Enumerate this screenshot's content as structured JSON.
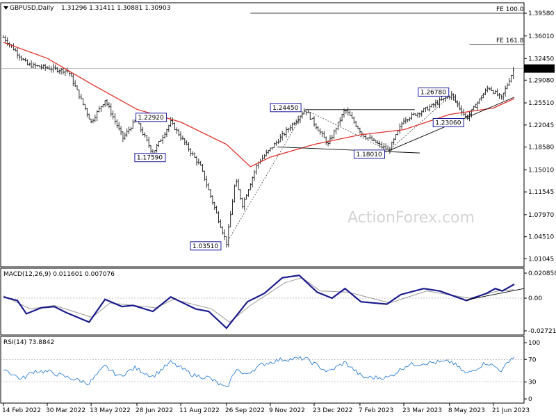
{
  "chart_data": [
    {
      "type": "candlestick",
      "title": "GBPUSD,Daily",
      "ohlc_header": "1.31296 1.31411 1.30881 1.30903",
      "symbol": "GBPUSD",
      "timeframe": "Daily",
      "last_price": "1.30903",
      "ylim": [
        1.0,
        1.41
      ],
      "y_ticks": [
        "1.39580",
        "1.36010",
        "1.32450",
        "1.29080",
        "1.25510",
        "1.22045",
        "1.18580",
        "1.15010",
        "1.11545",
        "1.07970",
        "1.04510",
        "1.01045"
      ],
      "x_ticks": [
        "14 Feb 2022",
        "30 Mar 2022",
        "13 May 2022",
        "28 Jun 2022",
        "11 Aug 2022",
        "26 Sep 2022",
        "9 Nov 2022",
        "23 Dec 2022",
        "7 Feb 2023",
        "23 Mar 2023",
        "8 May 2023",
        "21 Jun 2023"
      ],
      "price_path": [
        {
          "date": "2022-02-14",
          "price": 1.358
        },
        {
          "date": "2022-03-10",
          "price": 1.315
        },
        {
          "date": "2022-03-30",
          "price": 1.31
        },
        {
          "date": "2022-04-20",
          "price": 1.305
        },
        {
          "date": "2022-05-13",
          "price": 1.225
        },
        {
          "date": "2022-05-27",
          "price": 1.26
        },
        {
          "date": "2022-06-14",
          "price": 1.2
        },
        {
          "date": "2022-06-27",
          "price": 1.229
        },
        {
          "date": "2022-07-14",
          "price": 1.1759
        },
        {
          "date": "2022-08-01",
          "price": 1.225
        },
        {
          "date": "2022-08-31",
          "price": 1.155
        },
        {
          "date": "2022-09-26",
          "price": 1.0351
        },
        {
          "date": "2022-10-05",
          "price": 1.135
        },
        {
          "date": "2022-10-12",
          "price": 1.095
        },
        {
          "date": "2022-10-27",
          "price": 1.16
        },
        {
          "date": "2022-11-16",
          "price": 1.195
        },
        {
          "date": "2022-12-14",
          "price": 1.2445
        },
        {
          "date": "2023-01-06",
          "price": 1.19
        },
        {
          "date": "2023-01-23",
          "price": 1.245
        },
        {
          "date": "2023-02-10",
          "price": 1.205
        },
        {
          "date": "2023-03-08",
          "price": 1.1801
        },
        {
          "date": "2023-03-23",
          "price": 1.229
        },
        {
          "date": "2023-04-14",
          "price": 1.245
        },
        {
          "date": "2023-05-10",
          "price": 1.2678
        },
        {
          "date": "2023-05-25",
          "price": 1.2306
        },
        {
          "date": "2023-06-16",
          "price": 1.28
        },
        {
          "date": "2023-06-29",
          "price": 1.262
        },
        {
          "date": "2023-07-12",
          "price": 1.31
        }
      ],
      "moving_average_path": [
        {
          "date": "2022-02-14",
          "price": 1.35
        },
        {
          "date": "2022-03-30",
          "price": 1.325
        },
        {
          "date": "2022-05-13",
          "price": 1.285
        },
        {
          "date": "2022-06-28",
          "price": 1.245
        },
        {
          "date": "2022-08-11",
          "price": 1.225
        },
        {
          "date": "2022-09-26",
          "price": 1.19
        },
        {
          "date": "2022-10-20",
          "price": 1.155
        },
        {
          "date": "2022-11-09",
          "price": 1.17
        },
        {
          "date": "2022-12-23",
          "price": 1.19
        },
        {
          "date": "2023-02-07",
          "price": 1.205
        },
        {
          "date": "2023-03-23",
          "price": 1.213
        },
        {
          "date": "2023-05-08",
          "price": 1.237
        },
        {
          "date": "2023-06-21",
          "price": 1.247
        },
        {
          "date": "2023-07-12",
          "price": 1.262
        }
      ],
      "horizontal_levels": [
        {
          "label": "FE 100.0",
          "price": 1.3958
        },
        {
          "label": "FE 161.8",
          "price": 1.3465
        }
      ],
      "annotations": [
        {
          "text": "1.22920",
          "date": "2022-06-27",
          "price": 1.2292
        },
        {
          "text": "1.17590",
          "date": "2022-07-14",
          "price": 1.1759
        },
        {
          "text": "1.03510",
          "date": "2022-09-26",
          "price": 1.0351
        },
        {
          "text": "1.24450",
          "date": "2022-12-14",
          "price": 1.2445
        },
        {
          "text": "1.18010",
          "date": "2023-03-08",
          "price": 1.1801
        },
        {
          "text": "1.26780",
          "date": "2023-05-10",
          "price": 1.2678
        },
        {
          "text": "1.23060",
          "date": "2023-05-25",
          "price": 1.2306
        }
      ],
      "watermark": "ActionForex.com",
      "colors": {
        "candles": "#1a1a1a",
        "moving_average": "#e0302a",
        "trendlines": "#000000",
        "labels": "#1a1aa0",
        "dashed": "#555555"
      }
    },
    {
      "type": "line",
      "title": "MACD(12,26,9) 0.011601 0.007076",
      "indicator": "MACD",
      "params": "12,26,9",
      "values_shown": [
        "0.011601",
        "0.007076"
      ],
      "y_ticks": [
        "0.020858",
        "0.00",
        "-0.027213"
      ],
      "series": [
        {
          "name": "MACD",
          "color": "#1a1a8c",
          "points": [
            {
              "date": "2022-02-14",
              "value": 0.001
            },
            {
              "date": "2022-02-28",
              "value": -0.002
            },
            {
              "date": "2022-03-09",
              "value": -0.013
            },
            {
              "date": "2022-03-24",
              "value": -0.008
            },
            {
              "date": "2022-04-06",
              "value": -0.007
            },
            {
              "date": "2022-04-18",
              "value": -0.012
            },
            {
              "date": "2022-05-11",
              "value": -0.02
            },
            {
              "date": "2022-05-27",
              "value": -0.001
            },
            {
              "date": "2022-06-13",
              "value": -0.007
            },
            {
              "date": "2022-06-24",
              "value": -0.006
            },
            {
              "date": "2022-07-14",
              "value": -0.011
            },
            {
              "date": "2022-08-01",
              "value": 0.001
            },
            {
              "date": "2022-08-26",
              "value": -0.009
            },
            {
              "date": "2022-09-08",
              "value": -0.011
            },
            {
              "date": "2022-09-26",
              "value": -0.025
            },
            {
              "date": "2022-10-17",
              "value": -0.003
            },
            {
              "date": "2022-11-03",
              "value": 0.004
            },
            {
              "date": "2022-11-21",
              "value": 0.017
            },
            {
              "date": "2022-12-08",
              "value": 0.019
            },
            {
              "date": "2022-12-26",
              "value": 0.005
            },
            {
              "date": "2023-01-10",
              "value": 0.0
            },
            {
              "date": "2023-01-23",
              "value": 0.008
            },
            {
              "date": "2023-02-08",
              "value": -0.003
            },
            {
              "date": "2023-03-06",
              "value": -0.005
            },
            {
              "date": "2023-03-20",
              "value": 0.003
            },
            {
              "date": "2023-04-12",
              "value": 0.008
            },
            {
              "date": "2023-04-28",
              "value": 0.006
            },
            {
              "date": "2023-05-25",
              "value": -0.002
            },
            {
              "date": "2023-06-14",
              "value": 0.004
            },
            {
              "date": "2023-06-23",
              "value": 0.008
            },
            {
              "date": "2023-06-30",
              "value": 0.006
            },
            {
              "date": "2023-07-12",
              "value": 0.011601
            }
          ]
        },
        {
          "name": "Signal",
          "color": "#999999",
          "points": [
            {
              "date": "2022-02-14",
              "value": 0.002
            },
            {
              "date": "2022-03-13",
              "value": -0.009
            },
            {
              "date": "2022-04-06",
              "value": -0.006
            },
            {
              "date": "2022-05-14",
              "value": -0.016
            },
            {
              "date": "2022-06-01",
              "value": -0.004
            },
            {
              "date": "2022-07-17",
              "value": -0.008
            },
            {
              "date": "2022-08-04",
              "value": -0.001
            },
            {
              "date": "2022-09-11",
              "value": -0.009
            },
            {
              "date": "2022-09-29",
              "value": -0.02
            },
            {
              "date": "2022-10-20",
              "value": -0.006
            },
            {
              "date": "2022-11-24",
              "value": 0.013
            },
            {
              "date": "2022-12-11",
              "value": 0.017
            },
            {
              "date": "2022-12-29",
              "value": 0.006
            },
            {
              "date": "2023-01-26",
              "value": 0.005
            },
            {
              "date": "2023-03-09",
              "value": -0.004
            },
            {
              "date": "2023-04-15",
              "value": 0.006
            },
            {
              "date": "2023-05-28",
              "value": 0.0
            },
            {
              "date": "2023-06-26",
              "value": 0.006
            },
            {
              "date": "2023-07-12",
              "value": 0.007076
            }
          ]
        }
      ]
    },
    {
      "type": "line",
      "title": "RSI(14) 73.8842",
      "indicator": "RSI",
      "params": "14",
      "value_shown": "73.8842",
      "ylim": [
        0,
        100
      ],
      "y_ticks": [
        "100",
        "70",
        "30",
        "0"
      ],
      "reference_levels": [
        70,
        30
      ],
      "series": [
        {
          "name": "RSI",
          "color": "#2f7fd6",
          "points": [
            {
              "date": "2022-02-14",
              "value": 55
            },
            {
              "date": "2022-02-22",
              "value": 45
            },
            {
              "date": "2022-03-04",
              "value": 35
            },
            {
              "date": "2022-03-17",
              "value": 50
            },
            {
              "date": "2022-04-01",
              "value": 48
            },
            {
              "date": "2022-04-16",
              "value": 40
            },
            {
              "date": "2022-05-11",
              "value": 28
            },
            {
              "date": "2022-05-27",
              "value": 58
            },
            {
              "date": "2022-06-10",
              "value": 40
            },
            {
              "date": "2022-06-26",
              "value": 55
            },
            {
              "date": "2022-07-14",
              "value": 40
            },
            {
              "date": "2022-08-01",
              "value": 65
            },
            {
              "date": "2022-08-24",
              "value": 42
            },
            {
              "date": "2022-09-08",
              "value": 38
            },
            {
              "date": "2022-09-26",
              "value": 18
            },
            {
              "date": "2022-10-06",
              "value": 55
            },
            {
              "date": "2022-10-13",
              "value": 42
            },
            {
              "date": "2022-11-02",
              "value": 62
            },
            {
              "date": "2022-11-20",
              "value": 70
            },
            {
              "date": "2022-12-14",
              "value": 72
            },
            {
              "date": "2023-01-06",
              "value": 48
            },
            {
              "date": "2023-01-23",
              "value": 65
            },
            {
              "date": "2023-02-10",
              "value": 38
            },
            {
              "date": "2023-03-08",
              "value": 38
            },
            {
              "date": "2023-03-26",
              "value": 60
            },
            {
              "date": "2023-04-14",
              "value": 64
            },
            {
              "date": "2023-05-10",
              "value": 66
            },
            {
              "date": "2023-05-25",
              "value": 44
            },
            {
              "date": "2023-06-14",
              "value": 65
            },
            {
              "date": "2023-06-30",
              "value": 50
            },
            {
              "date": "2023-07-08",
              "value": 72
            },
            {
              "date": "2023-07-12",
              "value": 73.8842
            }
          ]
        }
      ]
    }
  ]
}
